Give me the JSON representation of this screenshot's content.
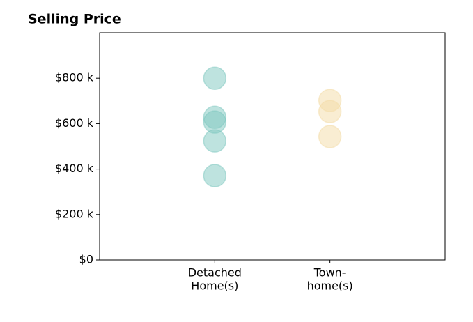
{
  "chart_data": {
    "type": "strip",
    "title": "Selling Price",
    "categories": [
      [
        "Detached",
        "Home(s)"
      ],
      [
        "Town-",
        "home(s)"
      ]
    ],
    "values": [
      [
        800,
        628,
        607,
        524,
        371
      ],
      [
        702,
        653,
        543
      ]
    ],
    "colors": [
      "#7ec8c0",
      "#f3dca6"
    ],
    "alpha": 0.5,
    "ylim": [
      0,
      1000
    ],
    "yticks": [
      {
        "value": 0,
        "label": "$0"
      },
      {
        "value": 200,
        "label": "$200 k"
      },
      {
        "value": 400,
        "label": "$400 k"
      },
      {
        "value": 600,
        "label": "$600 k"
      },
      {
        "value": 800,
        "label": "$800 k"
      }
    ],
    "grid": false
  }
}
